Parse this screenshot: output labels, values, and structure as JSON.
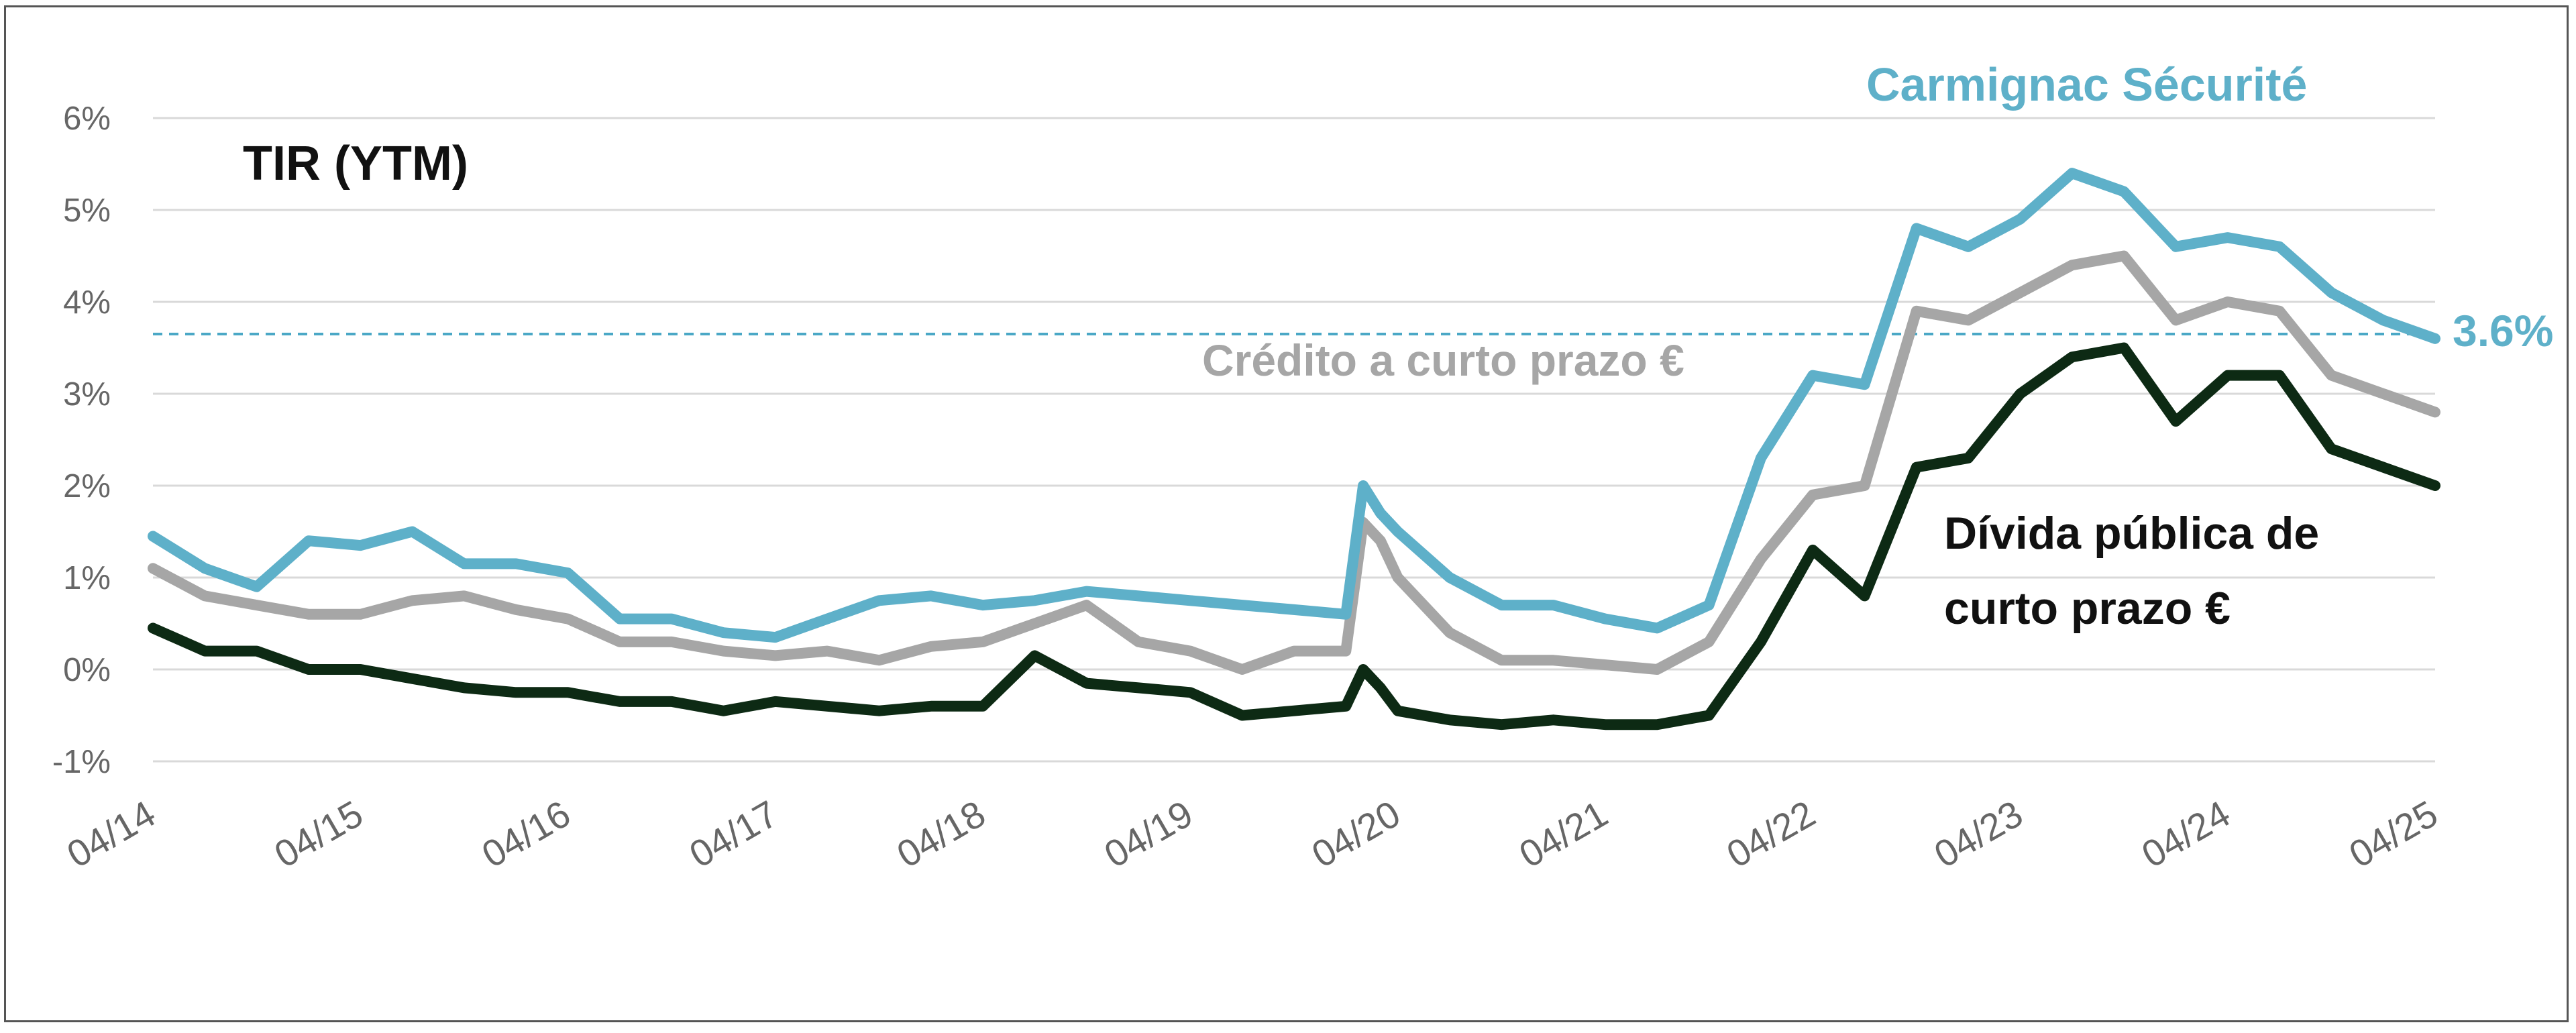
{
  "chart_data": {
    "type": "line",
    "title": "TIR (YTM)",
    "xlabel": "",
    "ylabel": "",
    "ylim": [
      -1,
      6
    ],
    "yticks": [
      "-1%",
      "0%",
      "1%",
      "2%",
      "3%",
      "4%",
      "5%",
      "6%"
    ],
    "xticks": [
      "04/14",
      "04/15",
      "04/16",
      "04/17",
      "04/18",
      "04/19",
      "04/20",
      "04/21",
      "04/22",
      "04/23",
      "04/24",
      "04/25"
    ],
    "grid": true,
    "reference_line": {
      "value": 3.65,
      "label": "3.6%",
      "style": "dashed",
      "color": "#4ba8c6"
    },
    "colors": {
      "fund": "#5eb0c9",
      "credit": "#a6a6a6",
      "sovereign": "#0d2a14",
      "grid": "#d9d9d9",
      "axis_text": "#666666"
    },
    "x": [
      "04/14",
      "07/14",
      "10/14",
      "01/15",
      "04/15",
      "07/15",
      "10/15",
      "01/16",
      "04/16",
      "07/16",
      "10/16",
      "01/17",
      "04/17",
      "07/17",
      "10/17",
      "01/18",
      "04/18",
      "07/18",
      "10/18",
      "01/19",
      "04/19",
      "07/19",
      "10/19",
      "01/20",
      "02/20",
      "03/20",
      "04/20",
      "07/20",
      "10/20",
      "01/21",
      "04/21",
      "07/21",
      "10/21",
      "01/22",
      "04/22",
      "07/22",
      "10/22",
      "01/23",
      "04/23",
      "07/23",
      "10/23",
      "01/24",
      "04/24",
      "07/24",
      "10/24",
      "01/25",
      "04/25"
    ],
    "series": [
      {
        "name": "Carmignac Sécurité",
        "key": "fund",
        "values": [
          1.45,
          1.1,
          0.9,
          1.4,
          1.35,
          1.5,
          1.15,
          1.15,
          1.05,
          0.55,
          0.55,
          0.4,
          0.35,
          0.55,
          0.75,
          0.8,
          0.7,
          0.75,
          0.85,
          0.8,
          0.75,
          0.7,
          0.65,
          0.6,
          2.0,
          1.7,
          1.5,
          1.0,
          0.7,
          0.7,
          0.55,
          0.45,
          0.7,
          2.3,
          3.2,
          3.1,
          4.8,
          4.6,
          4.9,
          5.4,
          5.2,
          4.6,
          4.7,
          4.6,
          4.1,
          3.8,
          3.6
        ]
      },
      {
        "name": "Crédito a curto prazo €",
        "key": "credit",
        "values": [
          1.1,
          0.8,
          0.7,
          0.6,
          0.6,
          0.75,
          0.8,
          0.65,
          0.55,
          0.3,
          0.3,
          0.2,
          0.15,
          0.2,
          0.1,
          0.25,
          0.3,
          0.5,
          0.7,
          0.3,
          0.2,
          0.0,
          0.2,
          0.2,
          1.6,
          1.4,
          1.0,
          0.4,
          0.1,
          0.1,
          0.05,
          0.0,
          0.3,
          1.2,
          1.9,
          2.0,
          3.9,
          3.8,
          4.1,
          4.4,
          4.5,
          3.8,
          4.0,
          3.9,
          3.2,
          3.0,
          2.8
        ]
      },
      {
        "name": "Dívida pública de curto prazo €",
        "key": "sovereign",
        "values": [
          0.45,
          0.2,
          0.2,
          0.0,
          0.0,
          -0.1,
          -0.2,
          -0.25,
          -0.25,
          -0.35,
          -0.35,
          -0.45,
          -0.35,
          -0.4,
          -0.45,
          -0.4,
          -0.4,
          0.15,
          -0.15,
          -0.2,
          -0.25,
          -0.5,
          -0.45,
          -0.4,
          0.0,
          -0.2,
          -0.45,
          -0.55,
          -0.6,
          -0.55,
          -0.6,
          -0.6,
          -0.5,
          0.3,
          1.3,
          0.8,
          2.2,
          2.3,
          3.0,
          3.4,
          3.5,
          2.7,
          3.2,
          3.2,
          2.4,
          2.2,
          2.0
        ]
      }
    ],
    "labels": {
      "fund": "Carmignac Sécurité",
      "credit": "Crédito a curto prazo €",
      "sovereign_line1": "Dívida pública de",
      "sovereign_line2": "curto prazo €"
    }
  }
}
